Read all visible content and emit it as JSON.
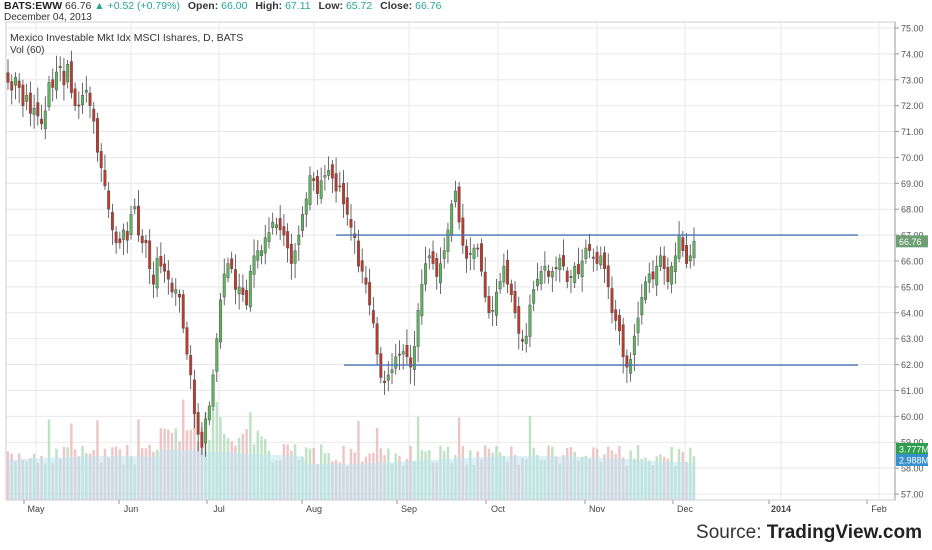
{
  "header": {
    "symbol": "BATS:EWW",
    "last": "66.76",
    "change": "▲ +0.52 (+0.79%)",
    "open_label": "Open:",
    "open": "66.00",
    "high_label": "High:",
    "high": "67.11",
    "low_label": "Low:",
    "low": "65.72",
    "close_label": "Close:",
    "close": "66.76",
    "date": "December 04, 2013"
  },
  "source": {
    "prefix": "Source:",
    "brand": "TradingView.com"
  },
  "colors": {
    "up": "#5cb85c",
    "down": "#c0392b",
    "vol_up": "#a8d8b0",
    "vol_down": "#e6b3b3",
    "vol_avg_fill": "#bfe3f2",
    "line": "#4a72b8",
    "grid": "#e8e8e8",
    "price_tag": "#6e9e73"
  },
  "chart_data": {
    "type": "candlestick",
    "title": "Mexico Investable Mkt Idx MSCI Ishares, D, BATS",
    "volume_label": "Vol (60)",
    "x_tick_labels": [
      "May",
      "Jun",
      "Jul",
      "Aug",
      "Sep",
      "Oct",
      "Nov",
      "Dec",
      "2014",
      "Feb"
    ],
    "y_tick_labels": [
      "57.00",
      "58.00",
      "59.00",
      "60.00",
      "61.00",
      "62.00",
      "63.00",
      "64.00",
      "65.00",
      "66.00",
      "67.00",
      "68.00",
      "69.00",
      "70.00",
      "71.00",
      "72.00",
      "73.00",
      "74.00",
      "75.00"
    ],
    "ylim": [
      57,
      75
    ],
    "last_price_tag": "66.76",
    "volume_tags": [
      "3.777M",
      "2.988M"
    ],
    "horizontal_lines": [
      67.0,
      61.98
    ],
    "grid": true,
    "closes": [
      72.9,
      72.6,
      73.1,
      72.7,
      72.0,
      72.4,
      71.7,
      71.9,
      71.6,
      71.3,
      71.8,
      72.9,
      72.7,
      73.3,
      73.5,
      72.8,
      73.6,
      72.5,
      72.0,
      72.0,
      72.4,
      72.6,
      72.0,
      71.4,
      70.2,
      69.6,
      68.9,
      68.0,
      67.2,
      66.7,
      66.7,
      67.2,
      66.8,
      67.8,
      68.1,
      67.0,
      66.7,
      66.7,
      65.7,
      65.1,
      66.1,
      65.8,
      65.6,
      65.3,
      64.8,
      64.9,
      64.6,
      63.4,
      62.4,
      61.6,
      60.1,
      59.3,
      58.8,
      59.9,
      60.4,
      61.6,
      63.0,
      64.5,
      65.5,
      65.9,
      65.7,
      64.9,
      65.0,
      64.7,
      64.3,
      65.6,
      66.2,
      66.4,
      66.4,
      66.9,
      67.1,
      67.5,
      67.4,
      67.2,
      67.0,
      66.5,
      65.9,
      66.4,
      67.0,
      67.8,
      68.4,
      69.3,
      69.1,
      68.6,
      69.1,
      69.3,
      69.5,
      69.2,
      68.7,
      68.9,
      68.2,
      67.8,
      67.3,
      66.9,
      65.8,
      65.6,
      65.1,
      64.3,
      63.6,
      62.4,
      61.5,
      61.3,
      61.6,
      61.8,
      62.3,
      62.4,
      62.5,
      62.3,
      61.9,
      62.7,
      64.1,
      65.1,
      65.9,
      66.2,
      65.9,
      65.4,
      65.9,
      66.4,
      67.2,
      68.2,
      68.7,
      67.5,
      66.6,
      66.1,
      66.3,
      66.5,
      66.5,
      65.6,
      64.6,
      64.0,
      64.1,
      64.8,
      65.2,
      65.8,
      65.1,
      64.7,
      64.0,
      63.2,
      62.9,
      63.1,
      64.3,
      64.9,
      65.3,
      65.6,
      65.8,
      65.4,
      65.6,
      65.7,
      66.1,
      65.8,
      65.2,
      65.4,
      65.8,
      65.5,
      66.0,
      66.5,
      66.4,
      66.1,
      65.9,
      66.2,
      65.7,
      65.0,
      64.0,
      63.7,
      63.3,
      62.3,
      61.9,
      62.2,
      63.1,
      63.8,
      64.6,
      65.2,
      65.5,
      65.3,
      65.8,
      66.2,
      65.7,
      65.2,
      65.8,
      66.2,
      67.0,
      66.4,
      65.9,
      66.2,
      66.76
    ]
  }
}
